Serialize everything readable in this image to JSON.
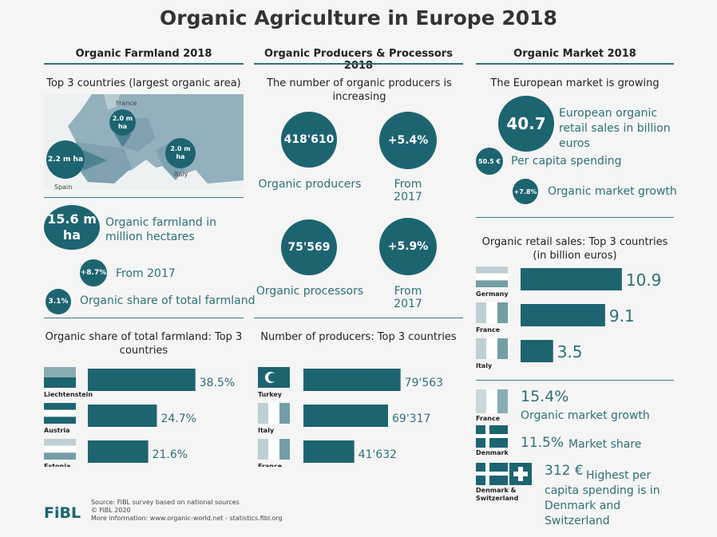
{
  "title": "Organic Agriculture in Europe 2018",
  "farmland": {
    "heading": "Organic Farmland 2018",
    "map_title": "Top 3 countries (largest organic area)",
    "france_label": "France",
    "france_value": "2.0 m ha",
    "italy_value": "2.0 m ha",
    "italy_label": "Italy",
    "spain_value": "2.2 m ha",
    "spain_label": "Spain",
    "total_value": "15.6 m ha",
    "total_caption": "Organic farmland in million hectares",
    "growth_value": "+8.7%",
    "growth_caption": "From 2017",
    "share_value": "3.1%",
    "share_caption": "Organic share of total farmland"
  },
  "producers": {
    "heading": "Organic Producers & Processors 2018",
    "subtitle": "The number of organic producers is increasing",
    "producers_value": "418'610",
    "producers_caption": "Organic producers",
    "producers_growth": "+5.4%",
    "producers_growth_caption": "From 2017",
    "processors_value": "75'569",
    "processors_caption": "Organic processors",
    "processors_growth": "+5.9%",
    "processors_growth_caption": "From 2017"
  },
  "market": {
    "heading": "Organic Market 2018",
    "subtitle": "The European market is growing",
    "retail_value": "40.7",
    "retail_caption": "European organic retail sales in billion euros",
    "capita_value": "50.5 €",
    "capita_caption": "Per capita spending",
    "growth_value": "+7.8%",
    "growth_caption": "Organic market growth",
    "stat1_value": "15.4%",
    "stat1_caption": "Organic market growth",
    "stat1_country": "France",
    "stat2_value": "11.5%",
    "stat2_caption": "Market share",
    "stat2_country": "Denmark",
    "stat3_value": "312 €",
    "stat3_caption": "Highest per capita spending is in Denmark and Switzerland",
    "stat3_country": "Denmark & Switzerland"
  },
  "chart_data": [
    {
      "type": "bar",
      "title": "Organic share of total farmland: Top 3 countries",
      "categories": [
        "Liechtenstein",
        "Austria",
        "Estonia"
      ],
      "values": [
        38.5,
        24.7,
        21.6
      ],
      "labels": [
        "38.5%",
        "24.7%",
        "21.6%"
      ],
      "xlim": [
        0,
        40
      ]
    },
    {
      "type": "bar",
      "title": "Number of producers: Top 3 countries",
      "categories": [
        "Turkey",
        "Italy",
        "France"
      ],
      "values": [
        79563,
        69317,
        41632
      ],
      "labels": [
        "79'563",
        "69'317",
        "41'632"
      ],
      "xlim": [
        0,
        85000
      ]
    },
    {
      "type": "bar",
      "title": "Organic retail sales: Top 3 countries (in billion euros)",
      "categories": [
        "Germany",
        "France",
        "Italy"
      ],
      "values": [
        10.9,
        9.1,
        3.5
      ],
      "labels": [
        "10.9",
        "9.1",
        "3.5"
      ],
      "xlim": [
        0,
        11.6
      ]
    }
  ],
  "footer": {
    "source": "Source: FiBL survey based on national sources",
    "copyright": "© FiBL 2020",
    "more": "More information: www.organic-world.net - statistics.fibl.org",
    "logo": "FiBL"
  },
  "colors": {
    "primary": "#1d6471",
    "accent": "#2f6f7a",
    "map_land": "#93b0bd"
  }
}
